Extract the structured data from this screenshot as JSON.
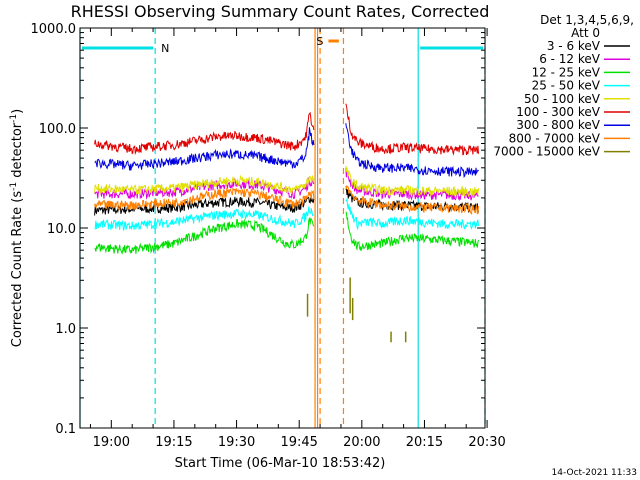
{
  "chart_data": {
    "type": "line",
    "title": "RHESSI Observing Summary Count Rates, Corrected",
    "xlabel": "Start Time (06-Mar-10 18:53:42)",
    "ylabel": "Corrected Count Rate (s-1 detector-1)",
    "ylabel_parts": {
      "main": "Corrected Count Rate (s",
      "exp1": "-1",
      "mid": " detector",
      "exp2": "-1",
      "end": ")"
    },
    "y_scale": "log",
    "ylim": [
      0.1,
      1000
    ],
    "y_ticks": [
      {
        "value": 1000,
        "label": "1000.0"
      },
      {
        "value": 100,
        "label": "100.0"
      },
      {
        "value": 10,
        "label": "10.0"
      },
      {
        "value": 1,
        "label": "1.0"
      },
      {
        "value": 0.1,
        "label": "0.1"
      }
    ],
    "x_range_minutes": [
      -7.5,
      89.5
    ],
    "x_ticks": [
      {
        "label": "19:00",
        "t": 0
      },
      {
        "label": "19:15",
        "t": 15
      },
      {
        "label": "19:30",
        "t": 30
      },
      {
        "label": "19:45",
        "t": 45
      },
      {
        "label": "20:00",
        "t": 60
      },
      {
        "label": "20:15",
        "t": 75
      },
      {
        "label": "20:30",
        "t": 90
      }
    ],
    "legend": {
      "header1": "Det 1,3,4,5,6,9,",
      "header2": "Att 0",
      "placement": "right"
    },
    "series": [
      {
        "name": "3 - 6 keV",
        "color": "#000000",
        "x": [
          -4,
          5,
          15,
          25,
          30,
          35,
          42,
          44,
          46.5,
          47.5,
          48.5,
          56,
          57.5,
          59,
          62,
          65,
          70,
          75,
          80,
          88
        ],
        "y": [
          15,
          15.5,
          16,
          18,
          18.5,
          18,
          16,
          16,
          18,
          20,
          19,
          24,
          20,
          18,
          17.5,
          17,
          17,
          16.5,
          16.5,
          16
        ]
      },
      {
        "name": "6 - 12 keV",
        "color": "#e000e0",
        "x": [
          -4,
          5,
          15,
          25,
          30,
          35,
          42,
          44,
          46.5,
          47.5,
          48.5,
          56,
          57.5,
          59,
          62,
          65,
          70,
          75,
          80,
          88
        ],
        "y": [
          22,
          22,
          23,
          27,
          28,
          27,
          23,
          22,
          25,
          30,
          28,
          38,
          28,
          24,
          23,
          22,
          22,
          21.5,
          21.5,
          21
        ]
      },
      {
        "name": "12 - 25 keV",
        "color": "#00e000",
        "x": [
          -4,
          5,
          15,
          25,
          30,
          35,
          42,
          44,
          46.5,
          47.5,
          48.5,
          56,
          57.5,
          59,
          62,
          65,
          70,
          75,
          80,
          88
        ],
        "y": [
          6.5,
          6,
          7,
          10,
          11,
          10.5,
          7,
          6.8,
          8,
          12,
          10,
          15,
          8,
          6.5,
          6.8,
          7,
          8,
          7.8,
          7.5,
          7
        ]
      },
      {
        "name": "25 - 50 keV",
        "color": "#00ffff",
        "x": [
          -4,
          5,
          15,
          25,
          30,
          35,
          42,
          44,
          46.5,
          47.5,
          48.5,
          56,
          57.5,
          59,
          62,
          65,
          70,
          75,
          80,
          88
        ],
        "y": [
          11,
          10.5,
          11.5,
          13.5,
          14,
          13.5,
          11.5,
          11,
          13,
          16,
          14,
          20,
          14,
          11,
          11.5,
          11,
          12,
          11.5,
          11,
          11
        ]
      },
      {
        "name": "50 - 100 keV",
        "color": "#e0e000",
        "x": [
          -4,
          5,
          15,
          25,
          30,
          35,
          42,
          44,
          46.5,
          47.5,
          48.5,
          56,
          57.5,
          59,
          62,
          65,
          70,
          75,
          80,
          88
        ],
        "y": [
          25,
          24,
          25,
          29,
          30,
          29,
          25,
          24,
          27,
          33,
          30,
          40,
          30,
          26,
          25,
          24,
          24,
          23.5,
          23.5,
          23
        ]
      },
      {
        "name": "100 - 300 keV",
        "color": "#e00000",
        "x": [
          -4,
          5,
          15,
          25,
          30,
          35,
          42,
          44,
          46.5,
          47.5,
          48.5,
          56,
          57.5,
          59,
          62,
          65,
          70,
          75,
          80,
          88
        ],
        "y": [
          70,
          62,
          68,
          82,
          84,
          80,
          68,
          66,
          80,
          140,
          95,
          180,
          90,
          72,
          66,
          62,
          64,
          62,
          61,
          60
        ]
      },
      {
        "name": "300 - 800 keV",
        "color": "#0000e0",
        "x": [
          -4,
          5,
          15,
          25,
          30,
          35,
          42,
          44,
          46.5,
          47.5,
          48.5,
          56,
          57.5,
          59,
          62,
          65,
          70,
          75,
          80,
          88
        ],
        "y": [
          45,
          42,
          46,
          54,
          55,
          52,
          45,
          44,
          52,
          95,
          65,
          120,
          60,
          46,
          42,
          40,
          40,
          38,
          37,
          36
        ]
      },
      {
        "name": "800 - 7000 keV",
        "color": "#ff8000",
        "x": [
          -4,
          5,
          15,
          25,
          30,
          35,
          42,
          44,
          46.5,
          47.5,
          48.5,
          56,
          57.5,
          59,
          62,
          65,
          70,
          75,
          80,
          88
        ],
        "y": [
          17,
          17,
          18,
          22,
          23,
          22,
          18,
          17.5,
          19,
          22,
          21,
          28,
          22,
          19,
          18,
          17,
          16.5,
          16,
          16,
          15.5
        ]
      },
      {
        "name": "7000 - 15000 keV",
        "color": "#808000",
        "segments": [
          {
            "x": [
              47,
              47
            ],
            "y": [
              1.3,
              2.2
            ]
          },
          {
            "x": [
              57.2,
              57.2
            ],
            "y": [
              1.4,
              3.2
            ]
          },
          {
            "x": [
              57.8,
              57.8
            ],
            "y": [
              1.2,
              2.0
            ]
          },
          {
            "x": [
              67,
              67
            ],
            "y": [
              0.72,
              0.92
            ]
          },
          {
            "x": [
              70.5,
              70.5
            ],
            "y": [
              0.72,
              0.92
            ]
          }
        ]
      }
    ],
    "annotations": [
      {
        "type": "night",
        "label": "N",
        "color": "#00e0e0",
        "segments": [
          [
            -7.5,
            10.5
          ],
          [
            73.5,
            89.5
          ]
        ]
      },
      {
        "type": "saa",
        "label": "S",
        "color": "#ff8000",
        "segment": [
          52,
          54.5
        ]
      }
    ],
    "vlines": [
      {
        "t": -7.5,
        "color": "#00e0e0",
        "style": "solid"
      },
      {
        "t": 10.5,
        "color": "#00e0e0",
        "style": "dashed"
      },
      {
        "t": 73.5,
        "color": "#00e0e0",
        "style": "solid"
      },
      {
        "t": 89.5,
        "color": "#00e0e0",
        "style": "dashed"
      },
      {
        "t": 48.8,
        "color": "#ff8000",
        "style": "solid"
      },
      {
        "t": 49.4,
        "color": "#ff8000",
        "style": "solid"
      },
      {
        "t": 50.0,
        "color": "#ff8000",
        "style": "dashed"
      },
      {
        "t": 55.6,
        "color": "#ff8000",
        "style": "dashed"
      }
    ],
    "timestamp": "14-Oct-2021 11:33"
  }
}
